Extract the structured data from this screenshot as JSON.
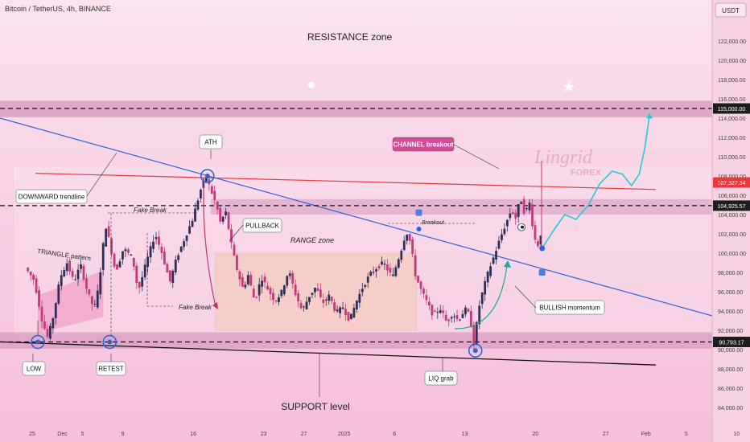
{
  "header": {
    "symbol_title": "Bitcoin / TetherUS, 4h, BINANCE",
    "currency": "USDT"
  },
  "watermark": {
    "brand": "Lingrid",
    "sub": "FOREX"
  },
  "chart_data": {
    "type": "candlestick",
    "y_axis": {
      "ticks": [
        {
          "value": 84000,
          "label": "84,000.00"
        },
        {
          "value": 86000,
          "label": "86,000.00"
        },
        {
          "value": 88000,
          "label": "88,000.00"
        },
        {
          "value": 90000,
          "label": "90,000.00"
        },
        {
          "value": 92000,
          "label": "92,000.00"
        },
        {
          "value": 94000,
          "label": "94,000.00"
        },
        {
          "value": 96000,
          "label": "96,000.00"
        },
        {
          "value": 98000,
          "label": "98,000.00"
        },
        {
          "value": 100000,
          "label": "100,000.00"
        },
        {
          "value": 102000,
          "label": "102,000.00"
        },
        {
          "value": 104000,
          "label": "104,000.00"
        },
        {
          "value": 106000,
          "label": "106,000.00"
        },
        {
          "value": 108000,
          "label": "108,000.00"
        },
        {
          "value": 110000,
          "label": "110,000.00"
        },
        {
          "value": 112000,
          "label": "112,000.00"
        },
        {
          "value": 114000,
          "label": "114,000.00"
        },
        {
          "value": 116000,
          "label": "116,000.00"
        },
        {
          "value": 118000,
          "label": "118,000.00"
        },
        {
          "value": 120000,
          "label": "120,000.00"
        },
        {
          "value": 122000,
          "label": "122,000.00"
        }
      ],
      "price_tags": [
        {
          "value": 115000,
          "label": "115,000.00",
          "style": "dark"
        },
        {
          "value": 107327.34,
          "label": "107,327.34",
          "style": "red"
        },
        {
          "value": 104925.57,
          "label": "104,925.57",
          "style": "dark"
        },
        {
          "value": 90793.17,
          "label": "90,793.17",
          "style": "dark"
        }
      ]
    },
    "x_axis": {
      "range_days": [
        -0.5,
        47
      ],
      "ticks": [
        {
          "day": 0,
          "label": "25"
        },
        {
          "day": 3,
          "label": "Dec"
        },
        {
          "day": 5,
          "label": "5"
        },
        {
          "day": 9,
          "label": "9"
        },
        {
          "day": 16,
          "label": "16"
        },
        {
          "day": 23,
          "label": "23"
        },
        {
          "day": 27,
          "label": "27"
        },
        {
          "day": 31,
          "label": "2025"
        },
        {
          "day": 36,
          "label": "6"
        },
        {
          "day": 43,
          "label": "13"
        },
        {
          "day": 50,
          "label": "20"
        },
        {
          "day": 57,
          "label": "27"
        },
        {
          "day": 61,
          "label": "Feb"
        },
        {
          "day": 65,
          "label": "5"
        },
        {
          "day": 70,
          "label": "10"
        }
      ]
    },
    "price_path": [
      [
        -0.5,
        98500
      ],
      [
        0.3,
        97200
      ],
      [
        1.0,
        93000
      ],
      [
        1.5,
        91200
      ],
      [
        2.0,
        93500
      ],
      [
        2.6,
        97500
      ],
      [
        3.2,
        99000
      ],
      [
        3.8,
        97000
      ],
      [
        4.4,
        98800
      ],
      [
        5.0,
        96000
      ],
      [
        5.6,
        94200
      ],
      [
        6.0,
        96500
      ],
      [
        6.6,
        103000
      ],
      [
        7.0,
        101000
      ],
      [
        7.5,
        98000
      ],
      [
        8.2,
        100500
      ],
      [
        9.0,
        99500
      ],
      [
        9.5,
        96000
      ],
      [
        10.2,
        99000
      ],
      [
        11.0,
        102000
      ],
      [
        11.6,
        100000
      ],
      [
        12.3,
        97000
      ],
      [
        12.9,
        99500
      ],
      [
        13.6,
        101500
      ],
      [
        14.3,
        103500
      ],
      [
        15.0,
        106500
      ],
      [
        15.5,
        107900
      ],
      [
        16.0,
        106300
      ],
      [
        16.4,
        105000
      ],
      [
        16.8,
        103000
      ],
      [
        17.2,
        104500
      ],
      [
        17.8,
        100500
      ],
      [
        18.3,
        98000
      ],
      [
        18.8,
        96200
      ],
      [
        19.2,
        97800
      ],
      [
        19.8,
        95000
      ],
      [
        20.4,
        97500
      ],
      [
        21.0,
        96200
      ],
      [
        21.6,
        95000
      ],
      [
        22.2,
        96000
      ],
      [
        22.8,
        98200
      ],
      [
        23.4,
        95800
      ],
      [
        24.0,
        94000
      ],
      [
        24.6,
        95500
      ],
      [
        25.2,
        96500
      ],
      [
        25.8,
        94800
      ],
      [
        26.4,
        95600
      ],
      [
        27.0,
        93800
      ],
      [
        27.6,
        94400
      ],
      [
        28.2,
        93000
      ],
      [
        28.8,
        95000
      ],
      [
        29.4,
        96600
      ],
      [
        30.0,
        97800
      ],
      [
        30.6,
        98500
      ],
      [
        31.2,
        99000
      ],
      [
        31.6,
        98200
      ],
      [
        32.0,
        97500
      ],
      [
        32.4,
        99000
      ],
      [
        32.8,
        100500
      ],
      [
        33.2,
        102300
      ],
      [
        33.6,
        101000
      ],
      [
        34.0,
        97800
      ],
      [
        34.5,
        96200
      ],
      [
        35.0,
        95000
      ],
      [
        35.6,
        93500
      ],
      [
        36.2,
        94300
      ],
      [
        36.8,
        92800
      ],
      [
        37.3,
        93800
      ],
      [
        37.8,
        93000
      ],
      [
        38.4,
        94200
      ],
      [
        38.8,
        93600
      ],
      [
        39.2,
        90500
      ],
      [
        39.6,
        94200
      ],
      [
        40.0,
        96200
      ],
      [
        40.5,
        98200
      ],
      [
        41.0,
        99800
      ],
      [
        41.5,
        101500
      ],
      [
        42.0,
        103000
      ],
      [
        42.5,
        104500
      ],
      [
        42.9,
        103600
      ],
      [
        43.3,
        105800
      ],
      [
        43.7,
        104000
      ],
      [
        44.1,
        105300
      ],
      [
        44.5,
        101800
      ],
      [
        44.8,
        100600
      ],
      [
        45.1,
        102000
      ]
    ],
    "candle_count": 185,
    "lines": {
      "red_resistance": {
        "from": [
          6,
          108200
        ],
        "to": [
          47,
          106600
        ]
      },
      "blue_downtrend": {
        "from": [
          -0.5,
          114000
        ],
        "to": [
          47,
          93500
        ]
      },
      "black_support": {
        "from": [
          1.5,
          90800
        ],
        "to": [
          47,
          88400
        ]
      },
      "dashed_levels": [
        115000,
        104925.57,
        90793.17
      ]
    },
    "zones": {
      "resistance_band": [
        114100,
        115800
      ],
      "range_box": {
        "days": [
          16.2,
          34.0
        ],
        "prices": [
          92000,
          100000
        ]
      },
      "upper_box": [
        104000,
        105600
      ],
      "support_band": [
        90100,
        91800
      ]
    },
    "projection": [
      [
        45.1,
        100500
      ],
      [
        46.2,
        102500
      ],
      [
        47.1,
        104000
      ],
      [
        48.1,
        103500
      ],
      [
        49.2,
        105000
      ],
      [
        50.2,
        107200
      ],
      [
        51.3,
        108500
      ],
      [
        52.2,
        108200
      ],
      [
        53.0,
        107000
      ],
      [
        53.7,
        108200
      ],
      [
        54.2,
        111000
      ],
      [
        54.6,
        114300
      ]
    ],
    "annotations": {
      "resistance_zone": "RESISTANCE zone",
      "support_level": "SUPPORT level",
      "ath": "ATH",
      "low": "LOW",
      "retest": "RETEST",
      "liq_grab": "LIQ grab",
      "downward_trendline": "DOWNWARD trendline",
      "triangle_pattern": "TRIANGLE pattern",
      "fake_break_top": "Fake Break",
      "fake_break_bottom": "Fake Break",
      "pullback": "PULLBACK",
      "range_zone": "RANGE zone",
      "breakout": "Breakout",
      "channel_breakout": "CHANNEL breakout",
      "bullish_momentum": "BULLISH momentum"
    }
  }
}
